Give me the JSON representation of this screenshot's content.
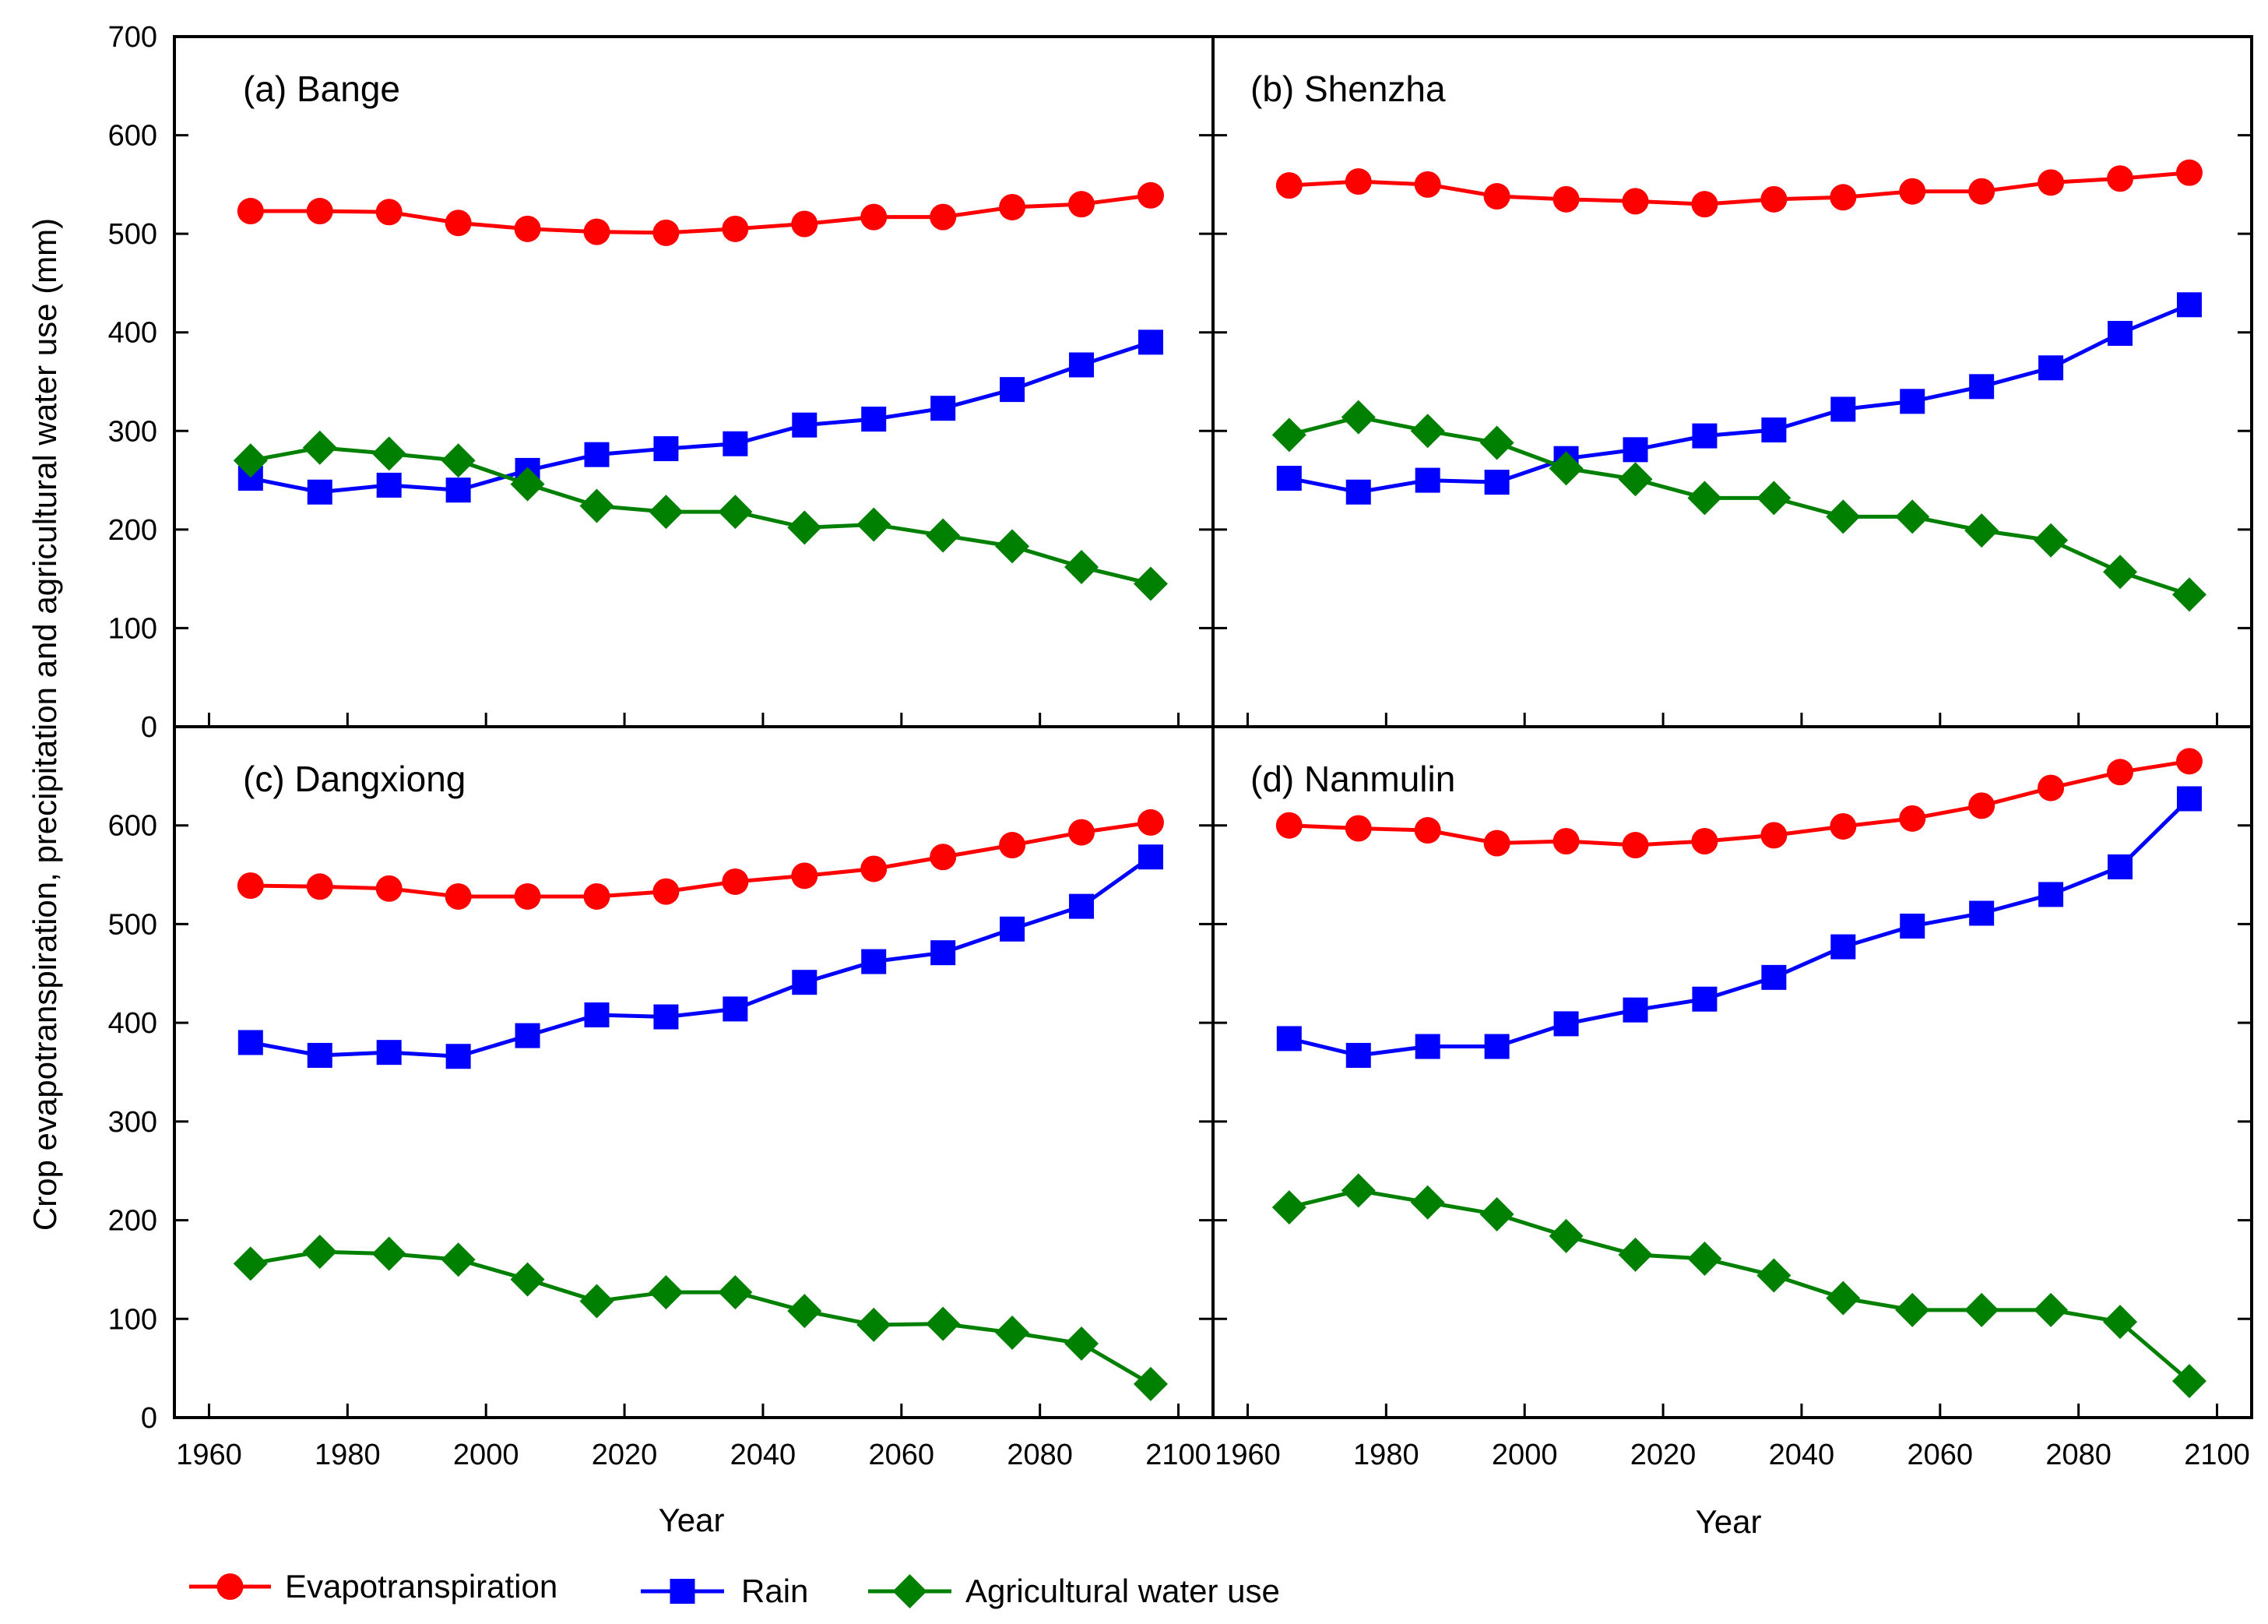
{
  "chart_data": {
    "type": "line",
    "ylabel": "Crop evapotranspiration, precipitation and agricultural water use  (mm)",
    "xlabel": "Year",
    "xlim": [
      1955,
      2105
    ],
    "ylim": [
      0,
      700
    ],
    "x_ticks": [
      1960,
      1980,
      2000,
      2020,
      2040,
      2060,
      2080,
      2100
    ],
    "y_ticks": [
      0,
      100,
      200,
      300,
      400,
      500,
      600,
      700
    ],
    "y_ticks_lower": [
      0,
      100,
      200,
      300,
      400,
      500,
      600
    ],
    "x": [
      1966,
      1976,
      1986,
      1996,
      2006,
      2016,
      2026,
      2036,
      2046,
      2056,
      2066,
      2076,
      2086,
      2096
    ],
    "legend": {
      "position": "bottom",
      "entries": [
        {
          "name": "Evapotranspiration",
          "color": "#ff0000",
          "marker": "circle"
        },
        {
          "name": "Rain",
          "color": "#0000ff",
          "marker": "square"
        },
        {
          "name": "Agricultural water use",
          "color": "#008000",
          "marker": "diamond"
        }
      ]
    },
    "panels": [
      {
        "title": "(a) Bange",
        "series": [
          {
            "name": "Evapotranspiration",
            "values": [
              523,
              523,
              522,
              511,
              505,
              502,
              501,
              505,
              510,
              517,
              517,
              527,
              530,
              539
            ]
          },
          {
            "name": "Rain",
            "values": [
              252,
              238,
              245,
              240,
              260,
              276,
              282,
              287,
              306,
              312,
              323,
              342,
              367,
              390
            ]
          },
          {
            "name": "Agricultural water use",
            "values": [
              270,
              283,
              277,
              270,
              246,
              224,
              218,
              218,
              202,
              205,
              194,
              183,
              162,
              145
            ]
          }
        ]
      },
      {
        "title": "(b) Shenzha",
        "series": [
          {
            "name": "Evapotranspiration",
            "values": [
              549,
              553,
              550,
              538,
              535,
              533,
              530,
              535,
              537,
              543,
              543,
              552,
              556,
              562
            ]
          },
          {
            "name": "Rain",
            "values": [
              252,
              238,
              250,
              248,
              272,
              281,
              295,
              301,
              322,
              330,
              345,
              364,
              399,
              428
            ]
          },
          {
            "name": "Agricultural water use",
            "values": [
              296,
              314,
              300,
              288,
              262,
              251,
              232,
              232,
              213,
              213,
              199,
              189,
              157,
              134
            ]
          }
        ]
      },
      {
        "title": "(c) Dangxiong",
        "series": [
          {
            "name": "Evapotranspiration",
            "values": [
              539,
              538,
              536,
              528,
              528,
              528,
              533,
              543,
              549,
              556,
              568,
              580,
              593,
              603
            ]
          },
          {
            "name": "Rain",
            "values": [
              380,
              367,
              370,
              366,
              387,
              408,
              406,
              414,
              441,
              462,
              471,
              495,
              518,
              568
            ]
          },
          {
            "name": "Agricultural water use",
            "values": [
              156,
              168,
              166,
              160,
              140,
              118,
              127,
              127,
              108,
              94,
              95,
              86,
              75,
              34
            ]
          }
        ]
      },
      {
        "title": "(d) Nanmulin",
        "series": [
          {
            "name": "Evapotranspiration",
            "values": [
              600,
              597,
              595,
              582,
              584,
              580,
              584,
              590,
              599,
              607,
              620,
              638,
              654,
              665
            ]
          },
          {
            "name": "Rain",
            "values": [
              384,
              367,
              376,
              376,
              399,
              413,
              424,
              446,
              477,
              498,
              511,
              530,
              558,
              627
            ]
          },
          {
            "name": "Agricultural water use",
            "values": [
              213,
              230,
              218,
              206,
              184,
              165,
              161,
              144,
              121,
              109,
              109,
              109,
              97,
              37
            ]
          }
        ]
      }
    ]
  }
}
